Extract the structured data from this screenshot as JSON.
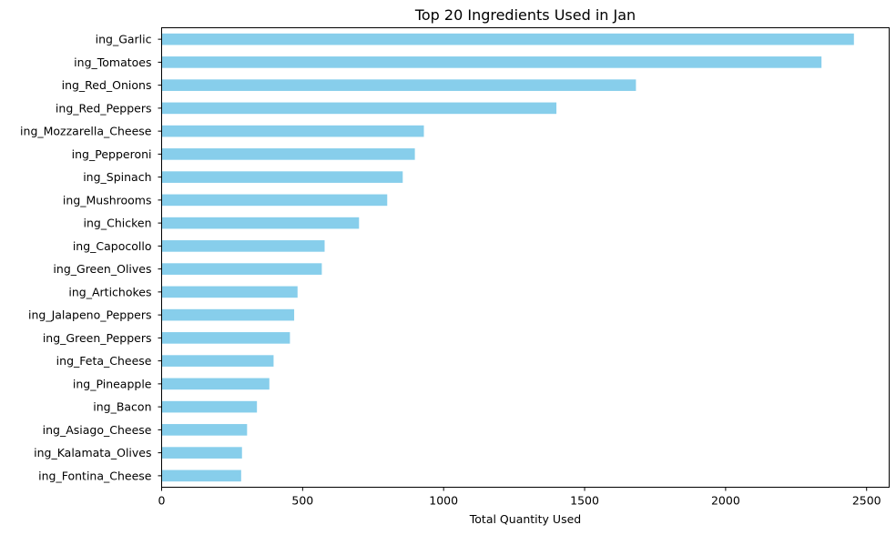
{
  "chart_data": {
    "type": "bar",
    "orientation": "horizontal",
    "title": "Top 20 Ingredients Used in Jan",
    "xlabel": "Total Quantity Used",
    "ylabel": "",
    "xlim": [
      0,
      2580
    ],
    "xticks": [
      0,
      500,
      1000,
      1500,
      2000,
      2500
    ],
    "grid": false,
    "legend": "none",
    "bar_color": "#87ceeb",
    "categories": [
      "ing_Garlic",
      "ing_Tomatoes",
      "ing_Red_Onions",
      "ing_Red_Peppers",
      "ing_Mozzarella_Cheese",
      "ing_Pepperoni",
      "ing_Spinach",
      "ing_Mushrooms",
      "ing_Chicken",
      "ing_Capocollo",
      "ing_Green_Olives",
      "ing_Artichokes",
      "ing_Jalapeno_Peppers",
      "ing_Green_Peppers",
      "ing_Feta_Cheese",
      "ing_Pineapple",
      "ing_Bacon",
      "ing_Asiago_Cheese",
      "ing_Kalamata_Olives",
      "ing_Fontina_Cheese"
    ],
    "values": [
      2455,
      2340,
      1682,
      1400,
      930,
      898,
      855,
      800,
      700,
      578,
      568,
      482,
      470,
      455,
      397,
      382,
      338,
      303,
      285,
      282
    ]
  }
}
